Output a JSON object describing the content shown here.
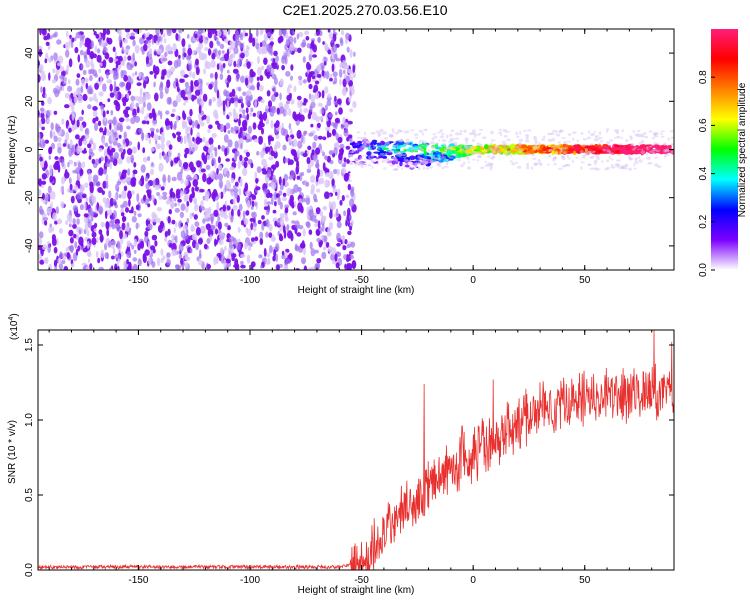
{
  "title": "C2E1.2025.270.03.56.E10",
  "chart_data": [
    {
      "type": "heatmap",
      "name": "spectrogram",
      "xlabel": "Height of straight line (km)",
      "ylabel": "Frequency (Hz)",
      "xlim": [
        -195,
        90
      ],
      "ylim": [
        -50,
        50
      ],
      "xticks": [
        -150,
        -100,
        -50,
        0,
        50
      ],
      "yticks": [
        -40,
        -20,
        0,
        20,
        40
      ],
      "noise_region_x": [
        -195,
        -55
      ],
      "signal_band_center_hz": 0,
      "colorbar": {
        "label": "Normalized spectral amplitude",
        "range": [
          0,
          1
        ],
        "ticks": [
          0.0,
          0.2,
          0.4,
          0.6,
          0.8
        ],
        "tick_labels": [
          "0.0",
          "0.2",
          "0.4",
          "0.6",
          "0.8"
        ],
        "colors": [
          "#ffffff",
          "#7b00ff",
          "#0000ff",
          "#00ffff",
          "#00ff00",
          "#ffff00",
          "#ff8000",
          "#ff0000",
          "#ff1e78"
        ]
      }
    },
    {
      "type": "line",
      "name": "snr",
      "xlabel": "Height of straight line (km)",
      "ylabel": "SNR (10 * v/v)",
      "scale_label": "(x10",
      "scale_exponent": "4",
      "xlim": [
        -195,
        90
      ],
      "ylim": [
        0,
        1.6
      ],
      "xticks": [
        -150,
        -100,
        -50,
        0,
        50
      ],
      "yticks": [
        0.0,
        0.5,
        1.0,
        1.5
      ],
      "ytick_labels": [
        "0.0",
        "0.5",
        "1.0",
        "1.5"
      ],
      "series_color": "#e8302e",
      "trend": {
        "x": [
          -195,
          -60,
          -50,
          -45,
          -40,
          -35,
          -30,
          -25,
          -20,
          -15,
          -10,
          -5,
          0,
          10,
          20,
          30,
          40,
          50,
          60,
          70,
          80,
          90
        ],
        "y": [
          0.02,
          0.02,
          0.05,
          0.12,
          0.22,
          0.35,
          0.4,
          0.48,
          0.55,
          0.62,
          0.67,
          0.72,
          0.78,
          0.85,
          0.98,
          1.08,
          1.12,
          1.15,
          1.16,
          1.17,
          1.18,
          1.18
        ]
      },
      "noise_amplitude": 0.18,
      "peaks": [
        {
          "x": -22,
          "y": 1.24
        },
        {
          "x": -5,
          "y": 0.96
        },
        {
          "x": 9,
          "y": 1.27
        },
        {
          "x": 81,
          "y": 1.6
        },
        {
          "x": 89,
          "y": 1.52
        }
      ]
    }
  ]
}
